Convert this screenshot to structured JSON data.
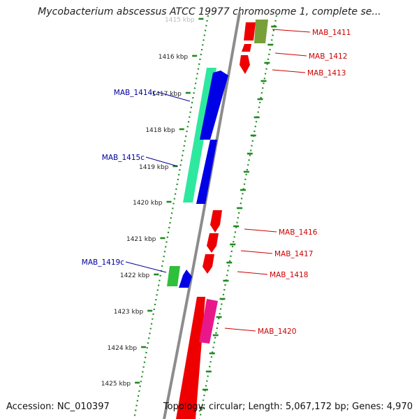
{
  "title": "Mycobacterium abscessus ATCC 19977 chromosome 1, complete se...",
  "footer": {
    "accession": "Accession: NC_010397",
    "summary": "Topology: circular; Length: 5,067,172 bp; Genes: 4,970"
  },
  "colors": {
    "backbone": "#8c8c8c",
    "tick_dots": "#1f8a1f",
    "forward_cds": "#ee0000",
    "forward_label": "#cc0000",
    "reverse_label": "#00009a",
    "reverse_cds": "#0000e6",
    "reverse_gene": "#2fe8a0"
  },
  "scale_labels": [
    "1415 kbp",
    "1416 kbp",
    "1417 kbp",
    "1418 kbp",
    "1419 kbp",
    "1420 kbp",
    "1421 kbp",
    "1422 kbp",
    "1423 kbp",
    "1424 kbp",
    "1425 kbp"
  ],
  "forward_labels": [
    "MAB_1411",
    "MAB_1412",
    "MAB_1413",
    "MAB_1416",
    "MAB_1417",
    "MAB_1418",
    "MAB_1420"
  ],
  "reverse_labels": [
    "MAB_1414c",
    "MAB_1415c",
    "MAB_1419c"
  ]
}
